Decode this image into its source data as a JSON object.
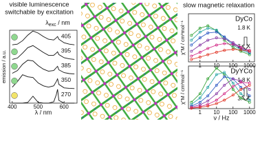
{
  "chart_data": [
    {
      "type": "line",
      "title": [
        "visible luminescence",
        "switchable by excitation"
      ],
      "x_label": "λ / nm",
      "y_label": "emission / a.u.",
      "legend_title": {
        "symbol": "λ",
        "sub": "exc",
        "unit": " / nm"
      },
      "x": [
        400,
        420,
        440,
        460,
        480,
        500,
        520,
        540,
        560,
        570,
        575,
        580,
        600,
        620,
        640
      ],
      "xlim": [
        390,
        650
      ],
      "xticks": [
        400,
        500,
        600
      ],
      "ylim": [
        0,
        1
      ],
      "series": [
        {
          "name": "405",
          "color": "#111111",
          "marker_color": "#8fd88f",
          "values": [
            0,
            0.05,
            0.3,
            0.7,
            1,
            0.85,
            0.6,
            0.4,
            0.35,
            0.5,
            0.6,
            0.4,
            0.15,
            0.05,
            0
          ]
        },
        {
          "name": "395",
          "color": "#111111",
          "marker_color": "#8fd88f",
          "values": [
            0,
            0.1,
            0.45,
            0.85,
            1,
            0.75,
            0.5,
            0.3,
            0.3,
            0.45,
            0.55,
            0.35,
            0.12,
            0.04,
            0
          ]
        },
        {
          "name": "385",
          "color": "#111111",
          "marker_color": "#8fd88f",
          "values": [
            0.05,
            0.25,
            0.7,
            1,
            0.95,
            0.6,
            0.35,
            0.2,
            0.25,
            0.45,
            0.55,
            0.3,
            0.1,
            0.03,
            0
          ]
        },
        {
          "name": "350",
          "color": "#111111",
          "marker_color": "#8fd88f",
          "values": [
            0.1,
            0.5,
            1,
            0.85,
            0.8,
            0.4,
            0.2,
            0.1,
            0.2,
            0.5,
            0.7,
            0.3,
            0.05,
            0.02,
            0
          ]
        },
        {
          "name": "270",
          "color": "#111111",
          "marker_color": "#f2e46a",
          "values": [
            0,
            0,
            0,
            0.05,
            0.5,
            0.05,
            0,
            0,
            0.1,
            0.6,
            1,
            0.2,
            0,
            0,
            0
          ]
        }
      ]
    },
    {
      "type": "line",
      "title": [
        "slow magnetic relaxation"
      ],
      "label": "DyCo",
      "y_label": "χ\"M / cm³mol⁻¹",
      "annotations": [
        "1.8 K",
        "3.4 K"
      ],
      "x": [
        0.3,
        1,
        3,
        10,
        30,
        100,
        300,
        1000
      ],
      "xlim": [
        0.2,
        2000
      ],
      "xticks": [
        1,
        10,
        100,
        1000
      ],
      "log_x": true,
      "ylim": [
        0,
        1
      ],
      "series": [
        {
          "color": "#2a9d2a",
          "values": [
            0.55,
            0.7,
            0.75,
            0.65,
            0.45,
            0.3,
            0.22,
            0.15
          ]
        },
        {
          "color": "#1fa0a0",
          "values": [
            0.45,
            0.62,
            0.7,
            0.66,
            0.5,
            0.35,
            0.25,
            0.18
          ]
        },
        {
          "color": "#2050c0",
          "values": [
            0.35,
            0.5,
            0.6,
            0.62,
            0.52,
            0.38,
            0.28,
            0.2
          ]
        },
        {
          "color": "#8030a0",
          "values": [
            0.22,
            0.35,
            0.45,
            0.5,
            0.48,
            0.4,
            0.3,
            0.22
          ]
        },
        {
          "color": "#d02080",
          "values": [
            0.12,
            0.2,
            0.28,
            0.35,
            0.38,
            0.36,
            0.3,
            0.24
          ]
        },
        {
          "color": "#e03020",
          "values": [
            0.05,
            0.1,
            0.15,
            0.2,
            0.24,
            0.26,
            0.25,
            0.22
          ]
        }
      ]
    },
    {
      "type": "line",
      "label": "DyYCo",
      "x_label": "ν / Hz",
      "y_label": "χ\"M / cm³mol⁻¹",
      "annotations": [
        "1.8 K",
        "3.4 K"
      ],
      "x": [
        0.3,
        1,
        3,
        10,
        30,
        100,
        300,
        1000
      ],
      "xlim": [
        0.2,
        2000
      ],
      "xticks": [
        1,
        10,
        100,
        1000
      ],
      "log_x": true,
      "ylim": [
        0,
        1
      ],
      "series": [
        {
          "color": "#2a9d2a",
          "values": [
            0.15,
            0.35,
            0.7,
            0.95,
            0.8,
            0.45,
            0.25,
            0.15
          ]
        },
        {
          "color": "#1fa0a0",
          "values": [
            0.1,
            0.25,
            0.5,
            0.8,
            0.85,
            0.6,
            0.35,
            0.2
          ]
        },
        {
          "color": "#2050c0",
          "values": [
            0.06,
            0.15,
            0.3,
            0.55,
            0.75,
            0.7,
            0.5,
            0.3
          ]
        },
        {
          "color": "#8030a0",
          "values": [
            0.04,
            0.09,
            0.18,
            0.35,
            0.55,
            0.7,
            0.65,
            0.45
          ]
        },
        {
          "color": "#d02080",
          "values": [
            0.02,
            0.05,
            0.1,
            0.2,
            0.35,
            0.52,
            0.62,
            0.6
          ]
        },
        {
          "color": "#e03020",
          "values": [
            0.01,
            0.03,
            0.06,
            0.12,
            0.2,
            0.32,
            0.45,
            0.55
          ]
        }
      ]
    }
  ]
}
